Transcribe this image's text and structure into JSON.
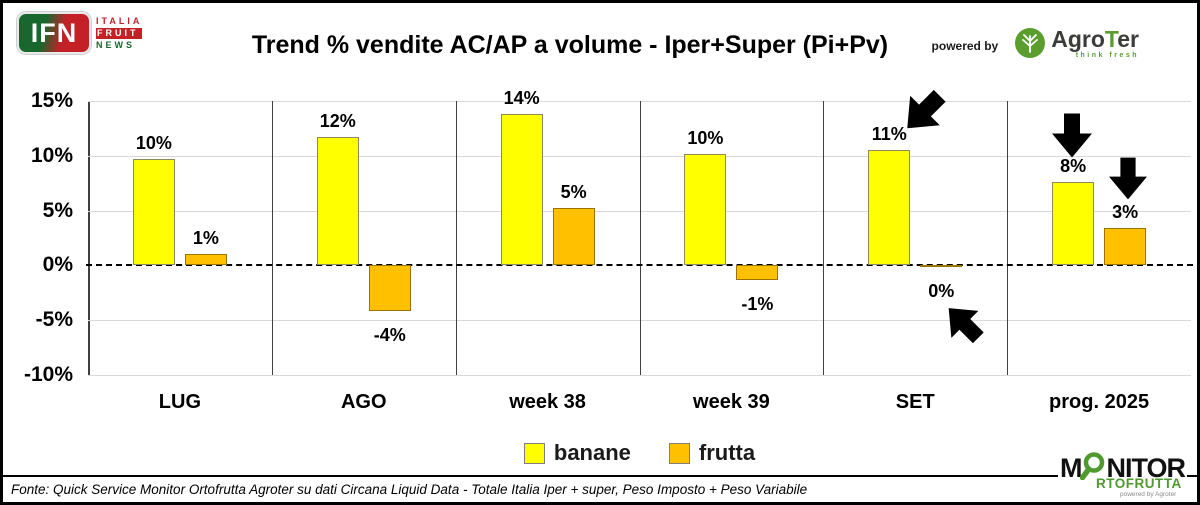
{
  "header": {
    "ifn_logo": {
      "acronym": "IFN",
      "line1": "ITALIA",
      "line2": "FRUIT",
      "line3": "NEWS"
    },
    "title": "Trend % vendite AC/AP a volume -  Iper+Super (Pi+Pv)",
    "powered_by": "powered by",
    "agroter": {
      "part_agro": "Agro",
      "part_t": "T",
      "part_er": "er",
      "tagline": "think fresh"
    }
  },
  "chart_data": {
    "type": "bar",
    "title": "Trend % vendite AC/AP a volume -  Iper+Super (Pi+Pv)",
    "categories": [
      "LUG",
      "AGO",
      "week 38",
      "week 39",
      "SET",
      "prog. 2025"
    ],
    "series": [
      {
        "name": "banane",
        "color": "#FFFF00",
        "border": "#8a8a5a",
        "values": [
          9.7,
          11.7,
          13.8,
          10.2,
          10.5,
          7.6
        ],
        "labels": [
          "10%",
          "12%",
          "14%",
          "10%",
          "11%",
          "8%"
        ]
      },
      {
        "name": "frutta",
        "color": "#FFC000",
        "border": "#9a7400",
        "values": [
          1.0,
          -4.2,
          5.2,
          -1.3,
          -0.1,
          3.4
        ],
        "labels": [
          "1%",
          "-4%",
          "5%",
          "-1%",
          "0%",
          "3%"
        ]
      }
    ],
    "xlabel": "",
    "ylabel": "",
    "ylim": [
      -10,
      15
    ],
    "y_ticks": [
      15,
      10,
      5,
      0,
      -5,
      -10
    ],
    "y_tick_labels": [
      "15%",
      "10%",
      "5%",
      "0%",
      "-5%",
      "-10%"
    ],
    "grid": true,
    "zero_line": "dashed black",
    "legend_position": "bottom",
    "annotations": [
      {
        "type": "arrow",
        "direction": "down-left",
        "target": "SET banane 11%"
      },
      {
        "type": "arrow",
        "direction": "up-left",
        "target": "SET frutta 0%"
      },
      {
        "type": "arrow",
        "direction": "down",
        "target": "prog. 2025 banane 8%"
      },
      {
        "type": "arrow",
        "direction": "down",
        "target": "prog. 2025 frutta 3%"
      }
    ]
  },
  "legend": [
    {
      "label": "banane",
      "color": "#FFFF00"
    },
    {
      "label": "frutta",
      "color": "#FFC000"
    }
  ],
  "footer": {
    "source": "Fonte: Quick Service Monitor Ortofrutta Agroter su dati Circana Liquid Data - Totale Italia Iper + super, Peso Imposto + Peso Variabile",
    "monitor_logo": {
      "m": "M",
      "nitor": "NITOR",
      "rtofrutta": "RTOFRUTTA",
      "powered": "powered by Agroter"
    }
  },
  "colors": {
    "banane": "#FFFF00",
    "frutta": "#FFC000",
    "grid": "#d9d9d9",
    "axis": "#404040",
    "ifn_green": "#17672e",
    "ifn_red": "#c42127",
    "agroter_green": "#5b9e2d",
    "monitor_green": "#4e9a2e"
  }
}
